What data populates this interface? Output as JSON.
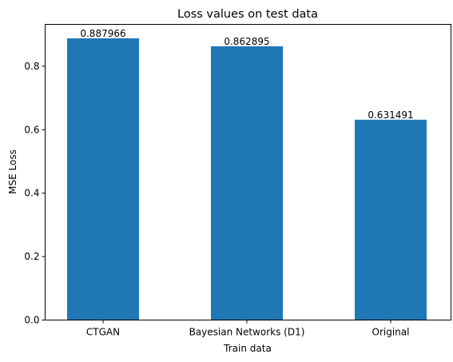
{
  "chart_data": {
    "type": "bar",
    "title": "Loss values on test data",
    "xlabel": "Train data",
    "ylabel": "MSE Loss",
    "categories": [
      "CTGAN",
      "Bayesian Networks (D1)",
      "Original"
    ],
    "values": [
      0.887966,
      0.862895,
      0.631491
    ],
    "value_labels": [
      "0.887966",
      "0.862895",
      "0.631491"
    ],
    "ylim": [
      0,
      0.932
    ],
    "yticks": [
      0.0,
      0.2,
      0.4,
      0.6,
      0.8
    ],
    "ytick_labels": [
      "0.0",
      "0.2",
      "0.4",
      "0.6",
      "0.8"
    ],
    "bar_color": "#1f77b4",
    "grid": false,
    "legend": "none"
  }
}
